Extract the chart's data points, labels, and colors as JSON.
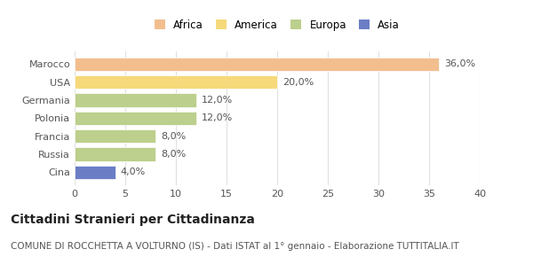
{
  "categories": [
    "Marocco",
    "USA",
    "Germania",
    "Polonia",
    "Francia",
    "Russia",
    "Cina"
  ],
  "values": [
    36.0,
    20.0,
    12.0,
    12.0,
    8.0,
    8.0,
    4.0
  ],
  "labels": [
    "36,0%",
    "20,0%",
    "12,0%",
    "12,0%",
    "8,0%",
    "8,0%",
    "4,0%"
  ],
  "colors": [
    "#f2be8e",
    "#f5d97a",
    "#bccf8c",
    "#bccf8c",
    "#bccf8c",
    "#bccf8c",
    "#6b7ec5"
  ],
  "legend": [
    {
      "label": "Africa",
      "color": "#f2be8e"
    },
    {
      "label": "America",
      "color": "#f5d97a"
    },
    {
      "label": "Europa",
      "color": "#bccf8c"
    },
    {
      "label": "Asia",
      "color": "#6b7ec5"
    }
  ],
  "xlim": [
    0,
    40
  ],
  "xticks": [
    0,
    5,
    10,
    15,
    20,
    25,
    30,
    35,
    40
  ],
  "title": "Cittadini Stranieri per Cittadinanza",
  "subtitle": "COMUNE DI ROCCHETTA A VOLTURNO (IS) - Dati ISTAT al 1° gennaio - Elaborazione TUTTITALIA.IT",
  "background_color": "#ffffff",
  "bar_edge_color": "white",
  "grid_color": "#e0e0e0",
  "title_fontsize": 10,
  "subtitle_fontsize": 7.5,
  "label_fontsize": 8,
  "tick_fontsize": 8,
  "legend_fontsize": 8.5
}
